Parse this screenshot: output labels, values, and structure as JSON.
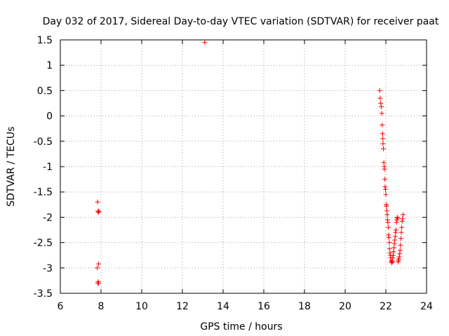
{
  "chart_data": {
    "type": "scatter",
    "title": "Day 032 of 2017, Sidereal Day-to-day VTEC variation (SDTVAR) for receiver paat",
    "xlabel": "GPS time / hours",
    "ylabel": "SDTVAR / TECUs",
    "xlim": [
      6,
      24
    ],
    "ylim": [
      -3.5,
      1.5
    ],
    "xticks": [
      6,
      8,
      10,
      12,
      14,
      16,
      18,
      20,
      22,
      24
    ],
    "xtick_labels": [
      "6",
      "8",
      "10",
      "12",
      "14",
      "16",
      "18",
      "20",
      "22",
      "24"
    ],
    "yticks": [
      -3.5,
      -3,
      -2.5,
      -2,
      -1.5,
      -1,
      -0.5,
      0,
      0.5,
      1,
      1.5
    ],
    "ytick_labels": [
      "-3.5",
      "-3",
      "-2.5",
      "-2",
      "-1.5",
      "-1",
      "-0.5",
      "0",
      "0.5",
      "1",
      "1.5"
    ],
    "grid": true,
    "marker": "+",
    "color": "#ff0000",
    "series": [
      {
        "name": "SDTVAR",
        "x": [
          7.83,
          7.85,
          7.87,
          7.9,
          7.88,
          7.82,
          7.86,
          7.84,
          7.88,
          13.1,
          21.7,
          21.72,
          21.75,
          21.78,
          21.8,
          21.82,
          21.84,
          21.85,
          21.86,
          21.88,
          21.9,
          21.92,
          21.93,
          21.95,
          21.96,
          21.98,
          22.0,
          22.02,
          22.03,
          22.05,
          22.07,
          22.08,
          22.1,
          22.12,
          22.13,
          22.15,
          22.17,
          22.18,
          22.2,
          22.22,
          22.24,
          22.26,
          22.28,
          22.3,
          22.32,
          22.34,
          22.36,
          22.38,
          22.4,
          22.42,
          22.44,
          22.46,
          22.48,
          22.5,
          22.52,
          22.54,
          22.56,
          22.58,
          22.6,
          22.62,
          22.64,
          22.66,
          22.68,
          22.7,
          22.72,
          22.74,
          22.76,
          22.78,
          22.8,
          22.82,
          22.85
        ],
        "y": [
          -1.7,
          -1.88,
          -1.9,
          -1.88,
          -2.92,
          -3.0,
          -3.27,
          -3.3,
          -3.3,
          1.45,
          0.5,
          0.35,
          0.25,
          0.18,
          0.05,
          -0.18,
          -0.35,
          -0.45,
          -0.55,
          -0.65,
          -0.92,
          -1.0,
          -1.05,
          -1.25,
          -1.4,
          -1.45,
          -1.55,
          -1.75,
          -1.78,
          -1.87,
          -1.95,
          -2.05,
          -2.1,
          -2.2,
          -2.35,
          -2.4,
          -2.5,
          -2.62,
          -2.7,
          -2.75,
          -2.8,
          -2.85,
          -2.88,
          -2.9,
          -2.87,
          -2.8,
          -2.75,
          -2.68,
          -2.6,
          -2.52,
          -2.45,
          -2.38,
          -2.3,
          -2.25,
          -2.1,
          -2.05,
          -2.0,
          -2.02,
          -2.88,
          -2.85,
          -2.82,
          -2.78,
          -2.72,
          -2.65,
          -2.55,
          -2.42,
          -2.3,
          -2.2,
          -2.08,
          -2.03,
          -1.95
        ]
      }
    ]
  }
}
